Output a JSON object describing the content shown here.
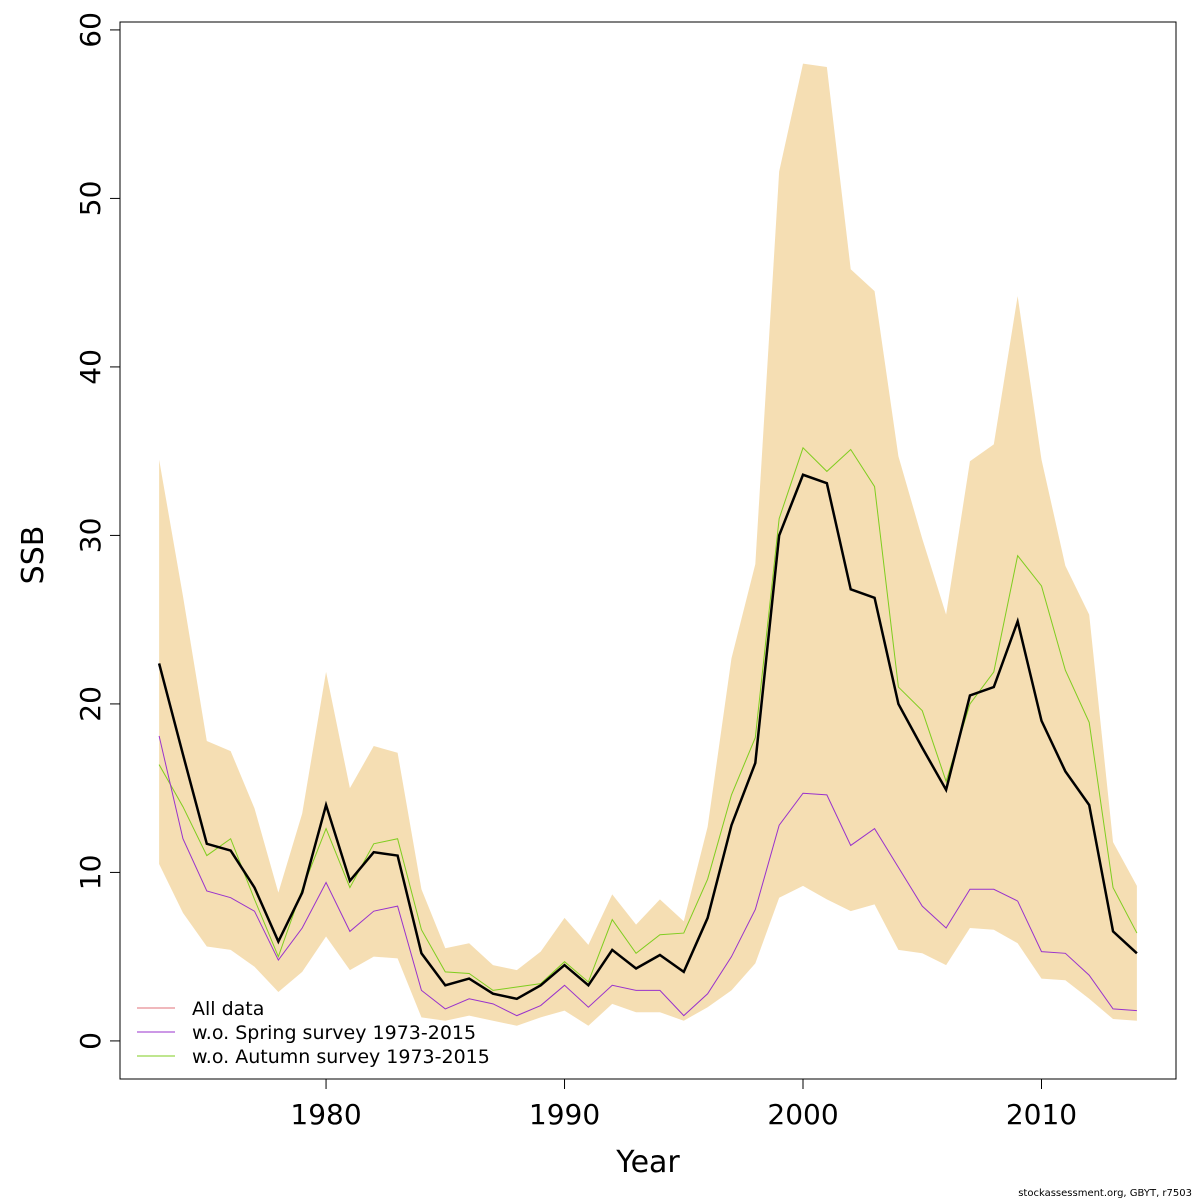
{
  "chart_data": {
    "type": "line",
    "x_label": "Year",
    "y_label": "SSB",
    "footer": "stockassessment.org, GBYT, r7503",
    "x": [
      1973,
      1974,
      1975,
      1976,
      1977,
      1978,
      1979,
      1980,
      1981,
      1982,
      1983,
      1984,
      1985,
      1986,
      1987,
      1988,
      1989,
      1990,
      1991,
      1992,
      1993,
      1994,
      1995,
      1996,
      1997,
      1998,
      1999,
      2000,
      2001,
      2002,
      2003,
      2004,
      2005,
      2006,
      2007,
      2008,
      2009,
      2010,
      2011,
      2012,
      2013,
      2014
    ],
    "band": {
      "color": "#f5deb3",
      "upper": [
        34.5,
        26.4,
        17.8,
        17.2,
        13.8,
        8.8,
        13.5,
        21.9,
        15,
        17.5,
        17.1,
        9,
        5.5,
        5.8,
        4.5,
        4.2,
        5.3,
        7.3,
        5.7,
        8.7,
        6.9,
        8.4,
        7.1,
        12.7,
        22.7,
        28.3,
        51.6,
        58,
        57.8,
        45.8,
        44.5,
        34.7,
        29.8,
        25.3,
        34.4,
        35.4,
        44.2,
        34.5,
        28.2,
        25.3,
        11.8,
        9.2
      ],
      "lower": [
        10.5,
        7.6,
        5.6,
        5.4,
        4.4,
        2.9,
        4.1,
        6.2,
        4.2,
        5,
        4.9,
        1.4,
        1.2,
        1.5,
        1.2,
        0.9,
        1.4,
        1.8,
        0.9,
        2.2,
        1.7,
        1.7,
        1.2,
        2,
        3,
        4.6,
        8.5,
        9.2,
        8.4,
        7.7,
        8.1,
        5.4,
        5.2,
        4.5,
        6.7,
        6.6,
        5.8,
        3.7,
        3.6,
        2.5,
        1.3,
        1.2
      ]
    },
    "series": [
      {
        "name": "All data",
        "color": "#000000",
        "legend_color": "#e0707a",
        "width": 2.5,
        "values": [
          22.4,
          17,
          11.7,
          11.3,
          9.1,
          5.9,
          8.8,
          14,
          9.5,
          11.2,
          11,
          5.2,
          3.3,
          3.7,
          2.8,
          2.5,
          3.3,
          4.5,
          3.3,
          5.4,
          4.3,
          5.1,
          4.1,
          7.3,
          12.8,
          16.5,
          30,
          33.6,
          33.1,
          26.8,
          26.3,
          20,
          17.4,
          14.9,
          20.5,
          21,
          24.9,
          19,
          16,
          14,
          6.5,
          5.2
        ]
      },
      {
        "name": "w.o. Spring survey 1973-2015",
        "color": "#9932cc",
        "legend_color": "#9932cc",
        "width": 1,
        "values": [
          18.1,
          12,
          8.9,
          8.5,
          7.7,
          4.8,
          6.7,
          9.4,
          6.5,
          7.7,
          8,
          3,
          1.9,
          2.5,
          2.2,
          1.5,
          2.1,
          3.3,
          2,
          3.3,
          3,
          3,
          1.5,
          2.8,
          5,
          7.8,
          12.8,
          14.7,
          14.6,
          11.6,
          12.6,
          10.3,
          8,
          6.7,
          9,
          9,
          8.3,
          5.3,
          5.2,
          3.9,
          1.9,
          1.8
        ]
      },
      {
        "name": "w.o. Autumn survey 1973-2015",
        "color": "#7fcd1f",
        "legend_color": "#7fcd1f",
        "width": 1,
        "values": [
          16.4,
          13.9,
          11,
          12,
          8.4,
          5,
          9,
          12.6,
          9.1,
          11.7,
          12,
          6.6,
          4.1,
          4,
          3,
          3.2,
          3.4,
          4.7,
          3.5,
          7.2,
          5.2,
          6.3,
          6.4,
          9.6,
          14.6,
          18,
          31,
          35.2,
          33.8,
          35.1,
          32.9,
          21,
          19.6,
          15.4,
          20,
          21.9,
          28.8,
          27,
          22,
          18.9,
          9.1,
          6.4
        ]
      }
    ],
    "xlim": [
      1971.36,
      2015.64
    ],
    "xticks": [
      1980,
      1990,
      2000,
      2010
    ],
    "ylim": [
      -2.26,
      60.47
    ],
    "yticks": [
      0,
      10,
      20,
      30,
      40,
      50,
      60
    ]
  }
}
